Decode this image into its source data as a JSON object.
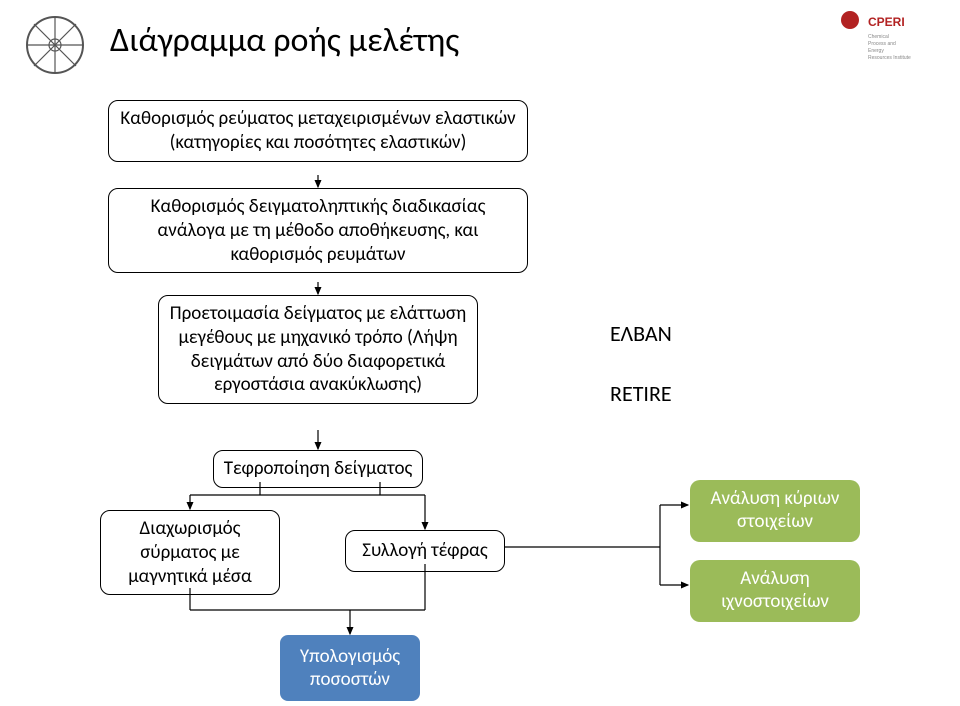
{
  "title": "Διάγραμμα ροής μελέτης",
  "logos": {
    "left_alt": "institute-emblem",
    "right_alt": "CPERI"
  },
  "nodes": {
    "n1": "Καθορισμός ρεύματος μεταχειρισμένων ελαστικών\n(κατηγορίες και ποσότητες ελαστικών)",
    "n2": "Καθορισμός δειγματοληπτικής διαδικασίας ανάλογα με τη μέθοδο αποθήκευσης, και καθορισμός ρευμάτων",
    "n3": "Προετοιμασία δείγματος με ελάττωση μεγέθους με μηχανικό τρόπο (Λήψη δειγμάτων από δύο διαφορετικά εργοστάσια ανακύκλωσης)",
    "n4": "Τεφροποίηση δείγματος",
    "n5": "Διαχωρισμός σύρματος με μαγνητικά μέσα",
    "n6": "Συλλογή τέφρας"
  },
  "side_labels": {
    "elvan": "ΕΛΒΑΝ",
    "retire": "RETIRE"
  },
  "green": {
    "g1": "Ανάλυση κύριων στοιχείων",
    "g2": "Ανάλυση ιχνοστοιχείων"
  },
  "blue": {
    "b1": "Υπολογισμός ποσοστών"
  },
  "colors": {
    "node_border": "#000000",
    "node_bg": "#ffffff",
    "green": "#9bbb59",
    "blue": "#4f81bd",
    "arrow": "#000000"
  }
}
